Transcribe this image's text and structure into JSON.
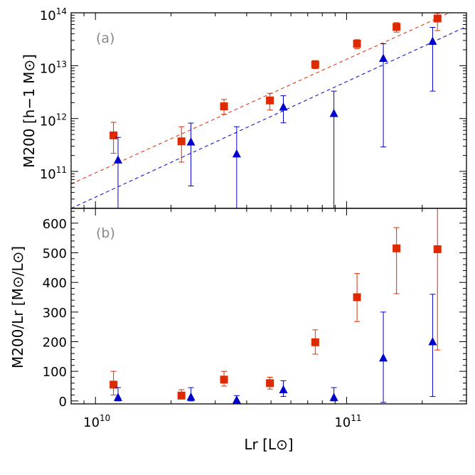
{
  "chart_data": [
    {
      "panel": "a",
      "panel_label": "(a)",
      "type": "scatter",
      "xscale": "log",
      "yscale": "log",
      "xlim": [
        8000000000.0,
        300000000000.0
      ],
      "ylim": [
        20000000000.0,
        100000000000000.0
      ],
      "ylabel": "M200 [h−1 M⊙]",
      "ytick_values": [
        100000000000.0,
        1000000000000.0,
        10000000000000.0,
        100000000000000.0
      ],
      "ytick_labels": [
        "10^11",
        "10^12",
        "10^13",
        "10^14"
      ],
      "series": [
        {
          "color": "#dd2a00",
          "marker": "square",
          "points": [
            {
              "x": 11800000000.0,
              "y": 480000000000.0,
              "lo": 220000000000.0,
              "hi": 850000000000.0
            },
            {
              "x": 22000000000.0,
              "y": 370000000000.0,
              "lo": 150000000000.0,
              "hi": 700000000000.0
            },
            {
              "x": 32500000000.0,
              "y": 1700000000000.0,
              "lo": 1200000000000.0,
              "hi": 2300000000000.0
            },
            {
              "x": 49500000000.0,
              "y": 2200000000000.0,
              "lo": 1450000000000.0,
              "hi": 3000000000000.0
            },
            {
              "x": 75000000000.0,
              "y": 10500000000000.0,
              "lo": 8800000000000.0,
              "hi": 12500000000000.0
            },
            {
              "x": 110000000000.0,
              "y": 26000000000000.0,
              "lo": 21000000000000.0,
              "hi": 31000000000000.0
            },
            {
              "x": 158000000000.0,
              "y": 54000000000000.0,
              "lo": 43000000000000.0,
              "hi": 65000000000000.0
            },
            {
              "x": 230000000000.0,
              "y": 78000000000000.0,
              "lo": 46000000000000.0,
              "hi": 98000000000000.0
            }
          ],
          "fit": {
            "x": [
              8000000000.0,
              300000000000.0
            ],
            "y": [
              58000000000.0,
              140000000000000.0
            ]
          }
        },
        {
          "color": "#0000cc",
          "marker": "triangle",
          "points": [
            {
              "x": 12300000000.0,
              "y": 165000000000.0,
              "lo": 20000000000.0,
              "hi": 440000000000.0
            },
            {
              "x": 24000000000.0,
              "y": 360000000000.0,
              "lo": 53000000000.0,
              "hi": 820000000000.0
            },
            {
              "x": 36500000000.0,
              "y": 215000000000.0,
              "lo": 20000000000.0,
              "hi": 700000000000.0
            },
            {
              "x": 56000000000.0,
              "y": 1650000000000.0,
              "lo": 830000000000.0,
              "hi": 2700000000000.0
            },
            {
              "x": 89000000000.0,
              "y": 1250000000000.0,
              "lo": 20000000000.0,
              "hi": 3300000000000.0
            },
            {
              "x": 140000000000.0,
              "y": 13800000000000.0,
              "lo": 290000000000.0,
              "hi": 26000000000000.0
            },
            {
              "x": 220000000000.0,
              "y": 29000000000000.0,
              "lo": 3300000000000.0,
              "hi": 53000000000000.0
            }
          ],
          "fit": {
            "x": [
              8000000000.0,
              300000000000.0
            ],
            "y": [
              20000000000.0,
              55000000000000.0
            ]
          }
        }
      ]
    },
    {
      "panel": "b",
      "panel_label": "(b)",
      "type": "scatter",
      "xscale": "log",
      "yscale": "linear",
      "xlim": [
        8000000000.0,
        300000000000.0
      ],
      "ylim": [
        -10,
        650
      ],
      "xlabel": "Lr [L⊙]",
      "ylabel": "M200/Lr [M⊙/L⊙]",
      "xtick_values": [
        10000000000.0,
        100000000000.0
      ],
      "xtick_labels": [
        "10^10",
        "10^11"
      ],
      "ytick_values": [
        0,
        100,
        200,
        300,
        400,
        500,
        600
      ],
      "ytick_labels": [
        "0",
        "100",
        "200",
        "300",
        "400",
        "500",
        "600"
      ],
      "series": [
        {
          "color": "#dd2a00",
          "marker": "square",
          "points": [
            {
              "x": 11800000000.0,
              "y": 55,
              "lo": 20,
              "hi": 100
            },
            {
              "x": 22000000000.0,
              "y": 18,
              "lo": 8,
              "hi": 38
            },
            {
              "x": 32500000000.0,
              "y": 72,
              "lo": 50,
              "hi": 100
            },
            {
              "x": 49500000000.0,
              "y": 60,
              "lo": 40,
              "hi": 80
            },
            {
              "x": 75000000000.0,
              "y": 198,
              "lo": 158,
              "hi": 240
            },
            {
              "x": 110000000000.0,
              "y": 350,
              "lo": 268,
              "hi": 430
            },
            {
              "x": 158000000000.0,
              "y": 515,
              "lo": 362,
              "hi": 585
            },
            {
              "x": 230000000000.0,
              "y": 512,
              "lo": 172,
              "hi": 650
            }
          ]
        },
        {
          "color": "#0000cc",
          "marker": "triangle",
          "points": [
            {
              "x": 12300000000.0,
              "y": 12,
              "lo": 0,
              "hi": 45
            },
            {
              "x": 24000000000.0,
              "y": 13,
              "lo": 0,
              "hi": 45
            },
            {
              "x": 36500000000.0,
              "y": 3,
              "lo": 0,
              "hi": 18
            },
            {
              "x": 56000000000.0,
              "y": 38,
              "lo": 15,
              "hi": 68
            },
            {
              "x": 89000000000.0,
              "y": 12,
              "lo": 0,
              "hi": 45
            },
            {
              "x": 140000000000.0,
              "y": 145,
              "lo": -5,
              "hi": 300
            },
            {
              "x": 220000000000.0,
              "y": 200,
              "lo": 15,
              "hi": 360
            }
          ]
        }
      ]
    }
  ]
}
